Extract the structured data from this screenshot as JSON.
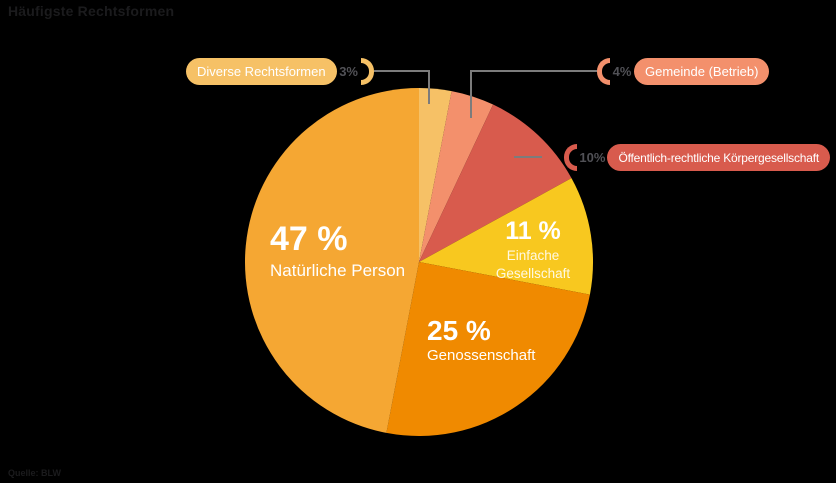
{
  "header": {
    "title": "Häufigste Rechtsformen"
  },
  "footer": {
    "source": "Quelle: BLW"
  },
  "chart_data": {
    "type": "pie",
    "title": "Häufigste Rechtsformen",
    "unit": "percent",
    "direction": "clockwise",
    "start_angle": "12-oclock",
    "legend_position": "callout-pills-and-inside-labels",
    "slices": [
      {
        "label": "Diverse Rechtsformen",
        "value": 3,
        "percent_label": "3%",
        "color": "#F6C166",
        "label_placement": "callout-top-left"
      },
      {
        "label": "Gemeinde (Betrieb)",
        "value": 4,
        "percent_label": "4%",
        "color": "#F3906C",
        "label_placement": "callout-top-right"
      },
      {
        "label": "Öffentlich-rechtliche Körpergesellschaft",
        "value": 10,
        "percent_label": "10%",
        "color": "#D85B4D",
        "label_placement": "callout-right"
      },
      {
        "label": "Einfache Gesellschaft",
        "value": 11,
        "percent_label": "11 %",
        "color": "#F8C81F",
        "label_placement": "inside"
      },
      {
        "label": "Genossenschaft",
        "value": 25,
        "percent_label": "25 %",
        "color": "#F08A00",
        "label_placement": "inside"
      },
      {
        "label": "Natürliche Person",
        "value": 47,
        "percent_label": "47 %",
        "color": "#F5A733",
        "label_placement": "inside"
      }
    ]
  },
  "colors": {
    "background": "#000000",
    "title_text": "#1B1B1D",
    "source_text": "#1B1B1D",
    "connector_line": "#7C7C7C",
    "callout_number": "#515156",
    "slice_label_text": "#FFFFFF"
  }
}
